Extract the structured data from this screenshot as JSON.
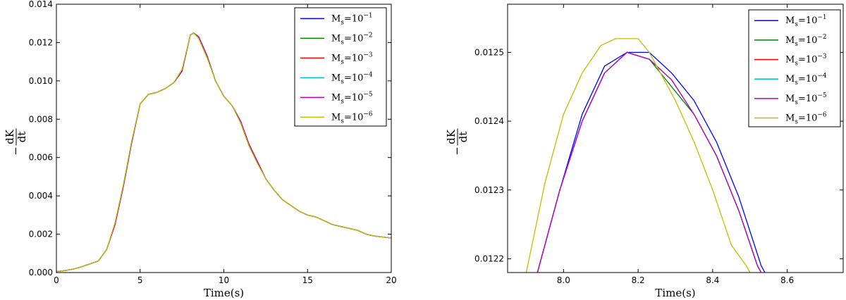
{
  "chart_data": [
    {
      "type": "line",
      "title": "",
      "xlabel": "Time(s)",
      "ylabel_top": "dK",
      "ylabel_bottom": "dt",
      "ylabel_sign": "−",
      "xlim": [
        0,
        20
      ],
      "ylim": [
        0,
        0.014
      ],
      "xticks": [
        0,
        5,
        10,
        15,
        20
      ],
      "xtick_labels": [
        "0",
        "5",
        "10",
        "15",
        "20"
      ],
      "yticks": [
        0.0,
        0.002,
        0.004,
        0.006,
        0.008,
        0.01,
        0.012,
        0.014
      ],
      "ytick_labels": [
        "0.000",
        "0.002",
        "0.004",
        "0.006",
        "0.008",
        "0.010",
        "0.012",
        "0.014"
      ],
      "grid": false,
      "legend_position": "top-right",
      "series": [
        {
          "name": "M_s = 10^-1",
          "label_base": "M",
          "label_sub": "s",
          "label_eq": "=10",
          "label_exp": "−1",
          "color": "#0000ff",
          "x": [
            0,
            0.5,
            1,
            1.5,
            2,
            2.5,
            3,
            3.5,
            4,
            4.5,
            5,
            5.5,
            6,
            6.5,
            7,
            7.5,
            8,
            8.2,
            8.5,
            9,
            9.5,
            10,
            10.5,
            11,
            11.5,
            12,
            12.5,
            13,
            13.5,
            14,
            14.5,
            15,
            15.5,
            16,
            16.5,
            17,
            17.5,
            18,
            18.5,
            19,
            19.5,
            20
          ],
          "y": [
            5e-05,
            0.0001,
            0.00018,
            0.0003,
            0.00045,
            0.0006,
            0.0012,
            0.0025,
            0.0045,
            0.0068,
            0.0088,
            0.0093,
            0.0094,
            0.0096,
            0.0099,
            0.0105,
            0.0124,
            0.0125,
            0.0123,
            0.0113,
            0.01,
            0.0092,
            0.0087,
            0.0079,
            0.0067,
            0.0058,
            0.0049,
            0.0043,
            0.0038,
            0.0035,
            0.0032,
            0.003,
            0.0029,
            0.0027,
            0.0025,
            0.0024,
            0.0023,
            0.0022,
            0.002,
            0.0019,
            0.00185,
            0.0018
          ]
        },
        {
          "name": "M_s = 10^-2",
          "label_base": "M",
          "label_sub": "s",
          "label_eq": "=10",
          "label_exp": "−2",
          "color": "#008000",
          "x": [
            0,
            0.5,
            1,
            1.5,
            2,
            2.5,
            3,
            3.5,
            4,
            4.5,
            5,
            5.5,
            6,
            6.5,
            7,
            7.5,
            8,
            8.2,
            8.5,
            9,
            9.5,
            10,
            10.5,
            11,
            11.5,
            12,
            12.5,
            13,
            13.5,
            14,
            14.5,
            15,
            15.5,
            16,
            16.5,
            17,
            17.5,
            18,
            18.5,
            19,
            19.5,
            20
          ],
          "y": [
            5e-05,
            0.0001,
            0.00018,
            0.0003,
            0.00045,
            0.0006,
            0.0012,
            0.0025,
            0.0045,
            0.0068,
            0.0088,
            0.0093,
            0.0094,
            0.0096,
            0.0099,
            0.0105,
            0.0124,
            0.0125,
            0.0123,
            0.0113,
            0.01,
            0.0092,
            0.0087,
            0.0079,
            0.0067,
            0.0058,
            0.0049,
            0.0043,
            0.0038,
            0.0035,
            0.0032,
            0.003,
            0.0029,
            0.0027,
            0.0025,
            0.0024,
            0.0023,
            0.0022,
            0.002,
            0.0019,
            0.00185,
            0.0018
          ]
        },
        {
          "name": "M_s = 10^-3",
          "label_base": "M",
          "label_sub": "s",
          "label_eq": "=10",
          "label_exp": "−3",
          "color": "#ff0000",
          "x": [
            0,
            0.5,
            1,
            1.5,
            2,
            2.5,
            3,
            3.5,
            4,
            4.5,
            5,
            5.5,
            6,
            6.5,
            7,
            7.5,
            8,
            8.2,
            8.5,
            9,
            9.5,
            10,
            10.5,
            11,
            11.5,
            12,
            12.5,
            13,
            13.5,
            14,
            14.5,
            15,
            15.5,
            16,
            16.5,
            17,
            17.5,
            18,
            18.5,
            19,
            19.5,
            20
          ],
          "y": [
            5e-05,
            0.0001,
            0.00018,
            0.0003,
            0.00045,
            0.0006,
            0.0012,
            0.0025,
            0.0045,
            0.0068,
            0.0088,
            0.0093,
            0.0094,
            0.0096,
            0.0099,
            0.0105,
            0.0124,
            0.0125,
            0.0123,
            0.0113,
            0.01,
            0.0092,
            0.0087,
            0.0079,
            0.0067,
            0.0058,
            0.0049,
            0.0043,
            0.0038,
            0.0035,
            0.0032,
            0.003,
            0.0029,
            0.0027,
            0.0025,
            0.0024,
            0.0023,
            0.0022,
            0.002,
            0.0019,
            0.00185,
            0.0018
          ]
        },
        {
          "name": "M_s = 10^-4",
          "label_base": "M",
          "label_sub": "s",
          "label_eq": "=10",
          "label_exp": "−4",
          "color": "#00bfbf",
          "x": [
            0,
            0.5,
            1,
            1.5,
            2,
            2.5,
            3,
            3.5,
            4,
            4.5,
            5,
            5.5,
            6,
            6.5,
            7,
            7.5,
            8,
            8.2,
            8.5,
            9,
            9.5,
            10,
            10.5,
            11,
            11.5,
            12,
            12.5,
            13,
            13.5,
            14,
            14.5,
            15,
            15.5,
            16,
            16.5,
            17,
            17.5,
            18,
            18.5,
            19,
            19.5,
            20
          ],
          "y": [
            5e-05,
            0.0001,
            0.00018,
            0.0003,
            0.00045,
            0.0006,
            0.0012,
            0.0025,
            0.0045,
            0.0068,
            0.0088,
            0.0093,
            0.0094,
            0.0096,
            0.0099,
            0.0105,
            0.0124,
            0.0125,
            0.0123,
            0.0113,
            0.01,
            0.0092,
            0.0087,
            0.0079,
            0.0067,
            0.0058,
            0.0049,
            0.0043,
            0.0038,
            0.0035,
            0.0032,
            0.003,
            0.0029,
            0.0027,
            0.0025,
            0.0024,
            0.0023,
            0.0022,
            0.002,
            0.0019,
            0.00185,
            0.0018
          ]
        },
        {
          "name": "M_s = 10^-5",
          "label_base": "M",
          "label_sub": "s",
          "label_eq": "=10",
          "label_exp": "−5",
          "color": "#bf00bf",
          "x": [
            0,
            0.5,
            1,
            1.5,
            2,
            2.5,
            3,
            3.5,
            4,
            4.5,
            5,
            5.5,
            6,
            6.5,
            7,
            7.5,
            8,
            8.2,
            8.5,
            9,
            9.5,
            10,
            10.5,
            11,
            11.5,
            12,
            12.5,
            13,
            13.5,
            14,
            14.5,
            15,
            15.5,
            16,
            16.5,
            17,
            17.5,
            18,
            18.5,
            19,
            19.5,
            20
          ],
          "y": [
            5e-05,
            0.0001,
            0.00018,
            0.0003,
            0.00045,
            0.0006,
            0.0012,
            0.0025,
            0.0045,
            0.0068,
            0.0088,
            0.0093,
            0.0094,
            0.0096,
            0.0099,
            0.0105,
            0.0124,
            0.0125,
            0.0123,
            0.0113,
            0.01,
            0.0092,
            0.0087,
            0.0079,
            0.0067,
            0.0058,
            0.0049,
            0.0043,
            0.0038,
            0.0035,
            0.0032,
            0.003,
            0.0029,
            0.0027,
            0.0025,
            0.0024,
            0.0023,
            0.0022,
            0.002,
            0.0019,
            0.00185,
            0.0018
          ]
        },
        {
          "name": "M_s = 10^-6",
          "label_base": "M",
          "label_sub": "s",
          "label_eq": "=10",
          "label_exp": "−6",
          "color": "#bfbf00",
          "x": [
            0,
            0.5,
            1,
            1.5,
            2,
            2.5,
            3,
            3.5,
            4,
            4.5,
            5,
            5.5,
            6,
            6.5,
            7,
            7.5,
            8,
            8.2,
            8.5,
            9,
            9.5,
            10,
            10.5,
            11,
            11.5,
            12,
            12.5,
            13,
            13.5,
            14,
            14.5,
            15,
            15.5,
            16,
            16.5,
            17,
            17.5,
            18,
            18.5,
            19,
            19.5,
            20
          ],
          "y": [
            5e-05,
            0.0001,
            0.00018,
            0.0003,
            0.00045,
            0.0006,
            0.0012,
            0.0026,
            0.0046,
            0.0069,
            0.0088,
            0.0093,
            0.0094,
            0.0096,
            0.0099,
            0.0106,
            0.0124,
            0.0125,
            0.0122,
            0.0112,
            0.01,
            0.0092,
            0.0087,
            0.0078,
            0.0066,
            0.0057,
            0.0049,
            0.0043,
            0.0038,
            0.0035,
            0.0032,
            0.003,
            0.0029,
            0.0027,
            0.0025,
            0.0024,
            0.0023,
            0.0022,
            0.002,
            0.0019,
            0.00185,
            0.0018
          ]
        }
      ]
    },
    {
      "type": "line",
      "title": "",
      "xlabel": "Time(s)",
      "ylabel_top": "dK",
      "ylabel_bottom": "dt",
      "ylabel_sign": "−",
      "xlim": [
        7.85,
        8.75
      ],
      "ylim": [
        0.01218,
        0.01257
      ],
      "xticks": [
        8.0,
        8.2,
        8.4,
        8.6
      ],
      "xtick_labels": [
        "8.0",
        "8.2",
        "8.4",
        "8.6"
      ],
      "yticks": [
        0.0122,
        0.0123,
        0.0124,
        0.0125
      ],
      "ytick_labels": [
        "0.0122",
        "0.0123",
        "0.0124",
        "0.0125"
      ],
      "grid": false,
      "legend_position": "top-right",
      "series": [
        {
          "name": "M_s = 10^-1",
          "label_base": "M",
          "label_sub": "s",
          "label_eq": "=10",
          "label_exp": "−1",
          "color": "#0000ff",
          "x": [
            7.93,
            7.99,
            8.05,
            8.11,
            8.17,
            8.23,
            8.29,
            8.35,
            8.41,
            8.47,
            8.53,
            8.54
          ],
          "y": [
            0.01218,
            0.0123,
            0.01241,
            0.01248,
            0.0125,
            0.0125,
            0.01247,
            0.01243,
            0.01237,
            0.01229,
            0.01219,
            0.01218
          ]
        },
        {
          "name": "M_s = 10^-2",
          "label_base": "M",
          "label_sub": "s",
          "label_eq": "=10",
          "label_exp": "−2",
          "color": "#008000",
          "x": [
            7.93,
            7.99,
            8.05,
            8.11,
            8.17,
            8.23,
            8.29,
            8.35,
            8.41,
            8.47,
            8.52,
            8.53
          ],
          "y": [
            0.01218,
            0.0123,
            0.0124,
            0.01247,
            0.0125,
            0.01249,
            0.01245,
            0.01241,
            0.01235,
            0.01227,
            0.01219,
            0.01218
          ]
        },
        {
          "name": "M_s = 10^-3",
          "label_base": "M",
          "label_sub": "s",
          "label_eq": "=10",
          "label_exp": "−3",
          "color": "#ff0000",
          "x": [
            7.93,
            7.99,
            8.05,
            8.11,
            8.17,
            8.23,
            8.29,
            8.35,
            8.41,
            8.47,
            8.52,
            8.53
          ],
          "y": [
            0.01218,
            0.0123,
            0.0124,
            0.01247,
            0.0125,
            0.01249,
            0.01246,
            0.01241,
            0.01235,
            0.01227,
            0.01219,
            0.01218
          ]
        },
        {
          "name": "M_s = 10^-4",
          "label_base": "M",
          "label_sub": "s",
          "label_eq": "=10",
          "label_exp": "−4",
          "color": "#00bfbf",
          "x": [
            7.93,
            7.99,
            8.05,
            8.11,
            8.17,
            8.23,
            8.29,
            8.35,
            8.41,
            8.47,
            8.52,
            8.53
          ],
          "y": [
            0.01218,
            0.0123,
            0.0124,
            0.01247,
            0.0125,
            0.01249,
            0.01246,
            0.01241,
            0.01235,
            0.01227,
            0.01219,
            0.01218
          ]
        },
        {
          "name": "M_s = 10^-5",
          "label_base": "M",
          "label_sub": "s",
          "label_eq": "=10",
          "label_exp": "−5",
          "color": "#bf00bf",
          "x": [
            7.93,
            7.99,
            8.05,
            8.11,
            8.17,
            8.23,
            8.29,
            8.35,
            8.41,
            8.47,
            8.52,
            8.53
          ],
          "y": [
            0.01218,
            0.0123,
            0.0124,
            0.01247,
            0.0125,
            0.01249,
            0.01246,
            0.01241,
            0.01235,
            0.01227,
            0.01219,
            0.01218
          ]
        },
        {
          "name": "M_s = 10^-6",
          "label_base": "M",
          "label_sub": "s",
          "label_eq": "=10",
          "label_exp": "−6",
          "color": "#bfbf00",
          "x": [
            7.9,
            7.95,
            8.0,
            8.05,
            8.1,
            8.14,
            8.17,
            8.2,
            8.23,
            8.26,
            8.3,
            8.35,
            8.4,
            8.45,
            8.49,
            8.5
          ],
          "y": [
            0.01218,
            0.01231,
            0.01241,
            0.01247,
            0.01251,
            0.01252,
            0.01252,
            0.01252,
            0.0125,
            0.01247,
            0.01243,
            0.01237,
            0.0123,
            0.01222,
            0.01219,
            0.01218
          ]
        }
      ]
    }
  ]
}
